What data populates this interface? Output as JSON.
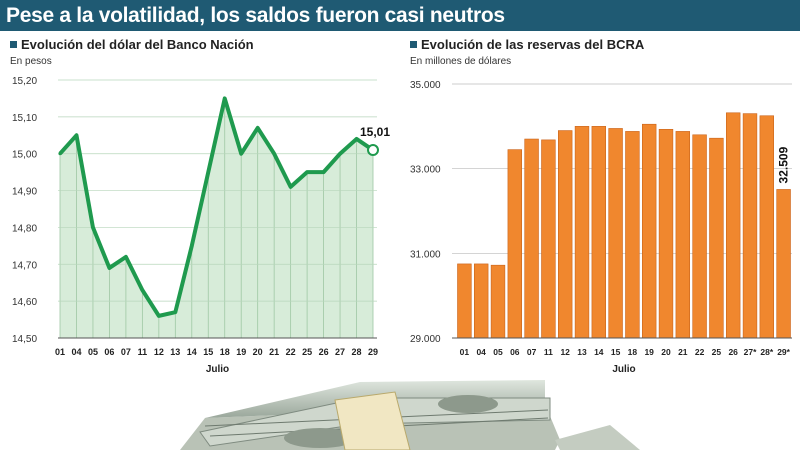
{
  "headline": "Pese a la volatilidad, los saldos fueron casi neutros",
  "colors": {
    "header_bg": "#1f5a73",
    "line": "#1f9a4e",
    "area": "#d7ecd9",
    "bar": "#f0872e",
    "bar_edge": "#c9631a"
  },
  "chart_data": [
    {
      "type": "area",
      "title": "Evolución del dólar del Banco Nación",
      "subtitle": "En pesos",
      "xlabel": "Julio",
      "x": [
        "01",
        "04",
        "05",
        "06",
        "07",
        "11",
        "12",
        "13",
        "14",
        "15",
        "18",
        "19",
        "20",
        "21",
        "22",
        "25",
        "26",
        "27",
        "28",
        "29"
      ],
      "yticks": [
        "15,20",
        "15,10",
        "15,00",
        "14,90",
        "14,80",
        "14,70",
        "14,60",
        "14,50"
      ],
      "ylim": [
        14.5,
        15.2
      ],
      "values": [
        15.0,
        15.05,
        14.8,
        14.69,
        14.72,
        14.63,
        14.56,
        14.57,
        14.75,
        14.95,
        15.15,
        15.0,
        15.07,
        15.0,
        14.91,
        14.95,
        14.95,
        15.0,
        15.04,
        15.01
      ],
      "last_label": "15,01",
      "grid": true
    },
    {
      "type": "bar",
      "title": "Evolución de las reservas del BCRA",
      "subtitle": "En millones de dólares",
      "xlabel": "Julio",
      "categories": [
        "01",
        "04",
        "05",
        "06",
        "07",
        "11",
        "12",
        "13",
        "14",
        "15",
        "18",
        "19",
        "20",
        "21",
        "22",
        "25",
        "26",
        "27*",
        "28*",
        "29*"
      ],
      "yticks": [
        "35.000",
        "33.000",
        "31.000",
        "29.000"
      ],
      "ylim": [
        29000,
        35000
      ],
      "values": [
        30750,
        30750,
        30720,
        33450,
        33700,
        33680,
        33900,
        34000,
        34000,
        33950,
        33880,
        34050,
        33930,
        33880,
        33800,
        33720,
        34320,
        34300,
        34250,
        32509
      ],
      "last_label": "32.509",
      "grid": true
    }
  ]
}
